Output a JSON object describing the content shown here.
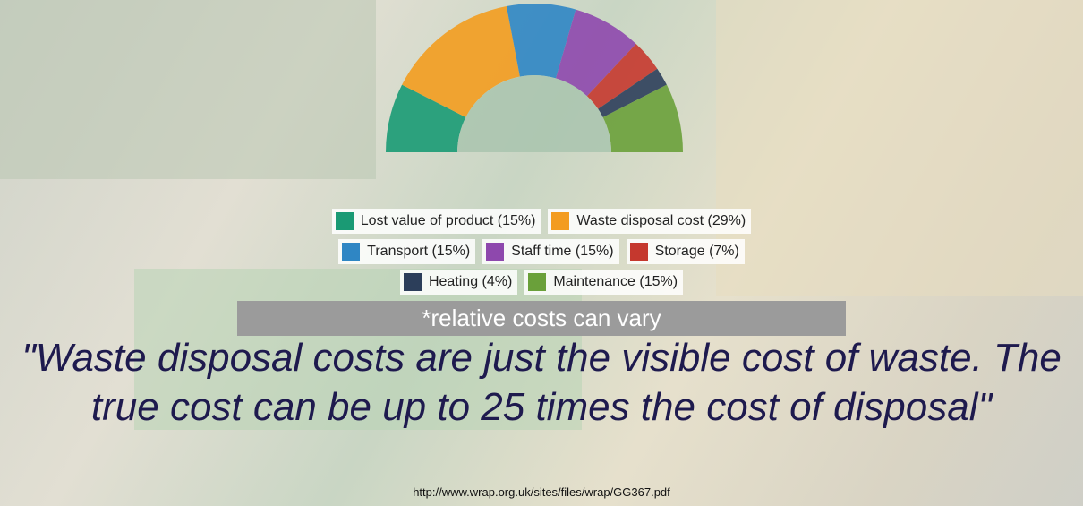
{
  "chart_data": {
    "type": "pie",
    "half": true,
    "categories": [
      "Lost value of product (15%)",
      "Waste disposal cost (29%)",
      "Transport (15%)",
      "Staff time (15%)",
      "Storage (7%)",
      "Heating (4%)",
      "Maintenance (15%)"
    ],
    "values": [
      15,
      29,
      15,
      15,
      7,
      4,
      15
    ],
    "colors": [
      "#1a9a74",
      "#f39c1f",
      "#2f86c4",
      "#8e48ad",
      "#c5382e",
      "#2c3e5a",
      "#6aa03a"
    ],
    "annotations": [
      "*relative costs can vary",
      "\"Waste disposal costs are just the visible cost of waste. The true cost can be up to 25 times the cost of disposal\"",
      "http://www.wrap.org.uk/sites/files/wrap/GG367.pdf"
    ]
  }
}
